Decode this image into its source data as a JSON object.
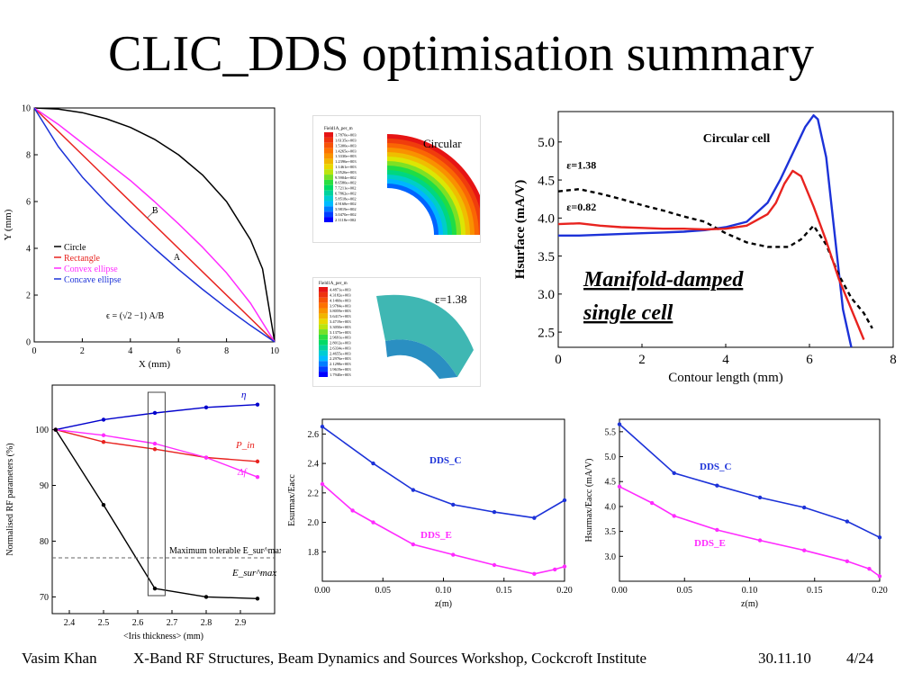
{
  "slide": {
    "title": "CLIC_DDS optimisation summary",
    "footer": {
      "author": "Vasim Khan",
      "event": "X-Band RF Structures, Beam Dynamics and Sources Workshop, Cockcroft Institute",
      "date": "30.11.10",
      "page": "4/24"
    }
  },
  "colors": {
    "black": "#000000",
    "red": "#e8231f",
    "magenta": "#ff2bff",
    "blue": "#1c32d8",
    "dark_blue": "#0000cc"
  },
  "sim_images": {
    "circular": {
      "label": "Circular",
      "legend_title": "Field1A_per_m",
      "legend_values": [
        "1.7870e+003",
        "1.6135e+003",
        "1.5300e+003",
        "1.4265e+003",
        "1.3330e+003",
        "1.2396e+003",
        "1.1461e+003",
        "1.0526e+003",
        "9.5904e+002",
        "8.6580e+002",
        "7.7211e+002",
        "6.7862e+002",
        "5.8518e+002",
        "4.9168e+002",
        "3.9819e+002",
        "3.0470e+002",
        "2.1118e+002"
      ]
    },
    "elliptical": {
      "label": "ε=1.38",
      "legend_title": "Field1A_per_m",
      "legend_values": [
        "4.4871e+003",
        "4.3182e+003",
        "4.1460e+003",
        "3.9784e+003",
        "3.8059e+003",
        "3.6417e+003",
        "3.4719e+003",
        "3.3050e+003",
        "3.1375e+003",
        "2.9691e+003",
        "2.8012e+003",
        "2.6334e+003",
        "2.4655e+003",
        "2.2976e+003",
        "2.1298e+003",
        "1.9619e+003",
        "1.7940e+003"
      ]
    }
  },
  "chart_data": [
    {
      "id": "iris-profiles",
      "type": "line",
      "xlabel": "X (mm)",
      "ylabel": "Y (mm)",
      "xlim": [
        0,
        10
      ],
      "ylim": [
        0,
        10
      ],
      "xticks": [
        0,
        2,
        4,
        6,
        8,
        10
      ],
      "yticks": [
        0,
        2,
        4,
        6,
        8,
        10
      ],
      "legend_position": "lower-left",
      "series": [
        {
          "name": "Circle",
          "color": "#000000",
          "x": [
            0,
            1,
            2,
            3,
            4,
            5,
            6,
            7,
            8,
            9,
            9.5,
            10
          ],
          "y": [
            10,
            9.95,
            9.8,
            9.54,
            9.17,
            8.66,
            8.0,
            7.14,
            6.0,
            4.36,
            3.12,
            0
          ]
        },
        {
          "name": "Rectangle",
          "color": "#e8231f",
          "x": [
            0,
            10
          ],
          "y": [
            10,
            0
          ]
        },
        {
          "name": "Convex ellipse",
          "color": "#ff2bff",
          "x": [
            0,
            1,
            2,
            3,
            4,
            5,
            6,
            7,
            8,
            9,
            10
          ],
          "y": [
            10,
            9.3,
            8.5,
            7.7,
            6.9,
            6.0,
            5.05,
            4.05,
            2.95,
            1.65,
            0
          ]
        },
        {
          "name": "Concave ellipse",
          "color": "#1c32d8",
          "x": [
            0,
            1,
            2,
            3,
            4,
            5,
            6,
            7,
            8,
            9,
            10
          ],
          "y": [
            10,
            8.35,
            7.05,
            5.95,
            4.95,
            4.0,
            3.1,
            2.25,
            1.45,
            0.7,
            0
          ]
        }
      ],
      "annotations": [
        {
          "text": "B",
          "x": 4.9,
          "y": 5.5
        },
        {
          "text": "A",
          "x": 5.8,
          "y": 3.5
        }
      ],
      "formula": "ϵ = (√2 −1) A/B"
    },
    {
      "id": "hsurface",
      "type": "line",
      "title": "Circular cell",
      "xlabel": "Contour length (mm)",
      "ylabel": "Hsurface (mA/V)",
      "xlim": [
        0,
        8
      ],
      "ylim": [
        2.3,
        5.4
      ],
      "xticks": [
        0,
        2,
        4,
        6,
        8
      ],
      "yticks": [
        2.5,
        3.0,
        3.5,
        4.0,
        4.5,
        5.0
      ],
      "series": [
        {
          "name": "Circular cell",
          "color": "#1c32d8",
          "style": "solid",
          "x": [
            0,
            0.5,
            1,
            1.5,
            2,
            2.5,
            3,
            3.5,
            4,
            4.5,
            5,
            5.3,
            5.6,
            5.9,
            6.1,
            6.2,
            6.4,
            6.6,
            6.8,
            7.0
          ],
          "y": [
            3.77,
            3.77,
            3.78,
            3.79,
            3.8,
            3.81,
            3.82,
            3.84,
            3.88,
            3.95,
            4.2,
            4.5,
            4.85,
            5.2,
            5.35,
            5.3,
            4.8,
            3.8,
            2.8,
            2.3
          ]
        },
        {
          "name": "ε=1.38",
          "color": "#000000",
          "style": "dashed",
          "x": [
            0,
            0.5,
            1,
            1.5,
            2,
            2.5,
            3,
            3.5,
            4,
            4.5,
            5,
            5.5,
            5.8,
            6.1,
            6.4,
            6.7,
            7.0,
            7.3,
            7.5
          ],
          "y": [
            4.35,
            4.38,
            4.32,
            4.25,
            4.17,
            4.1,
            4.02,
            3.95,
            3.8,
            3.68,
            3.62,
            3.62,
            3.72,
            3.9,
            3.65,
            3.25,
            2.95,
            2.75,
            2.55
          ]
        },
        {
          "name": "ε=0.82",
          "color": "#e8231f",
          "style": "solid",
          "x": [
            0,
            0.5,
            1,
            1.5,
            2,
            2.5,
            3,
            3.5,
            4,
            4.5,
            5,
            5.2,
            5.4,
            5.6,
            5.8,
            6.1,
            6.4,
            6.7,
            7.0,
            7.3
          ],
          "y": [
            3.92,
            3.93,
            3.9,
            3.88,
            3.87,
            3.86,
            3.86,
            3.85,
            3.86,
            3.9,
            4.05,
            4.2,
            4.45,
            4.62,
            4.55,
            4.15,
            3.7,
            3.2,
            2.8,
            2.4
          ]
        }
      ],
      "labels": [
        {
          "text": "ε=1.38",
          "x": 0.2,
          "y": 4.65
        },
        {
          "text": "ε=0.82",
          "x": 0.2,
          "y": 4.1
        }
      ],
      "annotation": "Manifold-damped single cell"
    },
    {
      "id": "rf-parameters",
      "type": "line",
      "xlabel": "<Iris thickness> (mm)",
      "ylabel": "Normalised RF parameters (%)",
      "xlim": [
        2.35,
        3.0
      ],
      "ylim": [
        67,
        108
      ],
      "xticks": [
        2.4,
        2.5,
        2.6,
        2.7,
        2.8,
        2.9
      ],
      "yticks": [
        70,
        80,
        90,
        100
      ],
      "threshold": {
        "label": "Maximum tolerable E_sur^max",
        "y": 77
      },
      "highlight_x": [
        2.63,
        2.68
      ],
      "series": [
        {
          "name": "η",
          "color": "#0000cc",
          "x": [
            2.36,
            2.5,
            2.65,
            2.8,
            2.95
          ],
          "y": [
            100,
            101.8,
            103,
            104,
            104.5
          ]
        },
        {
          "name": "P_in",
          "color": "#e8231f",
          "x": [
            2.36,
            2.5,
            2.65,
            2.8,
            2.95
          ],
          "y": [
            100,
            97.8,
            96.5,
            95.0,
            94.3
          ]
        },
        {
          "name": "Δf",
          "color": "#ff2bff",
          "x": [
            2.36,
            2.5,
            2.65,
            2.8,
            2.95
          ],
          "y": [
            100,
            99.0,
            97.5,
            95.0,
            91.5
          ]
        },
        {
          "name": "E_sur^max",
          "color": "#000000",
          "x": [
            2.36,
            2.5,
            2.65,
            2.8,
            2.95
          ],
          "y": [
            100,
            86.5,
            71.5,
            70,
            69.7
          ]
        }
      ]
    },
    {
      "id": "esurmax",
      "type": "line",
      "xlabel": "z(m)",
      "ylabel": "Esurmax/Eacc",
      "xlim": [
        0,
        0.2
      ],
      "ylim": [
        1.6,
        2.7
      ],
      "xticks": [
        0.0,
        0.05,
        0.1,
        0.15,
        0.2
      ],
      "xtick_labels": [
        "0.00",
        "0.05",
        "0.10",
        "0.15",
        "0.20"
      ],
      "yticks": [
        1.8,
        2.0,
        2.2,
        2.4,
        2.6
      ],
      "series": [
        {
          "name": "DDS_C",
          "color": "#1c32d8",
          "x": [
            0,
            0.042,
            0.075,
            0.108,
            0.142,
            0.175,
            0.2
          ],
          "y": [
            2.65,
            2.4,
            2.22,
            2.12,
            2.07,
            2.03,
            2.15
          ]
        },
        {
          "name": "DDS_E",
          "color": "#ff2bff",
          "x": [
            0,
            0.025,
            0.042,
            0.075,
            0.108,
            0.142,
            0.175,
            0.192,
            0.2
          ],
          "y": [
            2.26,
            2.08,
            2.0,
            1.85,
            1.78,
            1.71,
            1.65,
            1.68,
            1.7
          ]
        }
      ]
    },
    {
      "id": "hsurmax",
      "type": "line",
      "xlabel": "z(m)",
      "ylabel": "Hsurmax/Eacc (mA/V)",
      "xlim": [
        0,
        0.2
      ],
      "ylim": [
        2.5,
        5.75
      ],
      "xticks": [
        0.0,
        0.05,
        0.1,
        0.15,
        0.2
      ],
      "xtick_labels": [
        "0.00",
        "0.05",
        "0.10",
        "0.15",
        "0.20"
      ],
      "yticks": [
        3.0,
        3.5,
        4.0,
        4.5,
        5.0,
        5.5
      ],
      "series": [
        {
          "name": "DDS_C",
          "color": "#1c32d8",
          "x": [
            0,
            0.042,
            0.075,
            0.108,
            0.142,
            0.175,
            0.2
          ],
          "y": [
            5.65,
            4.67,
            4.42,
            4.18,
            3.98,
            3.7,
            3.38
          ]
        },
        {
          "name": "DDS_E",
          "color": "#ff2bff",
          "x": [
            0,
            0.025,
            0.042,
            0.075,
            0.108,
            0.142,
            0.175,
            0.192,
            0.2
          ],
          "y": [
            4.4,
            4.07,
            3.81,
            3.53,
            3.32,
            3.12,
            2.9,
            2.75,
            2.6
          ]
        }
      ]
    }
  ]
}
